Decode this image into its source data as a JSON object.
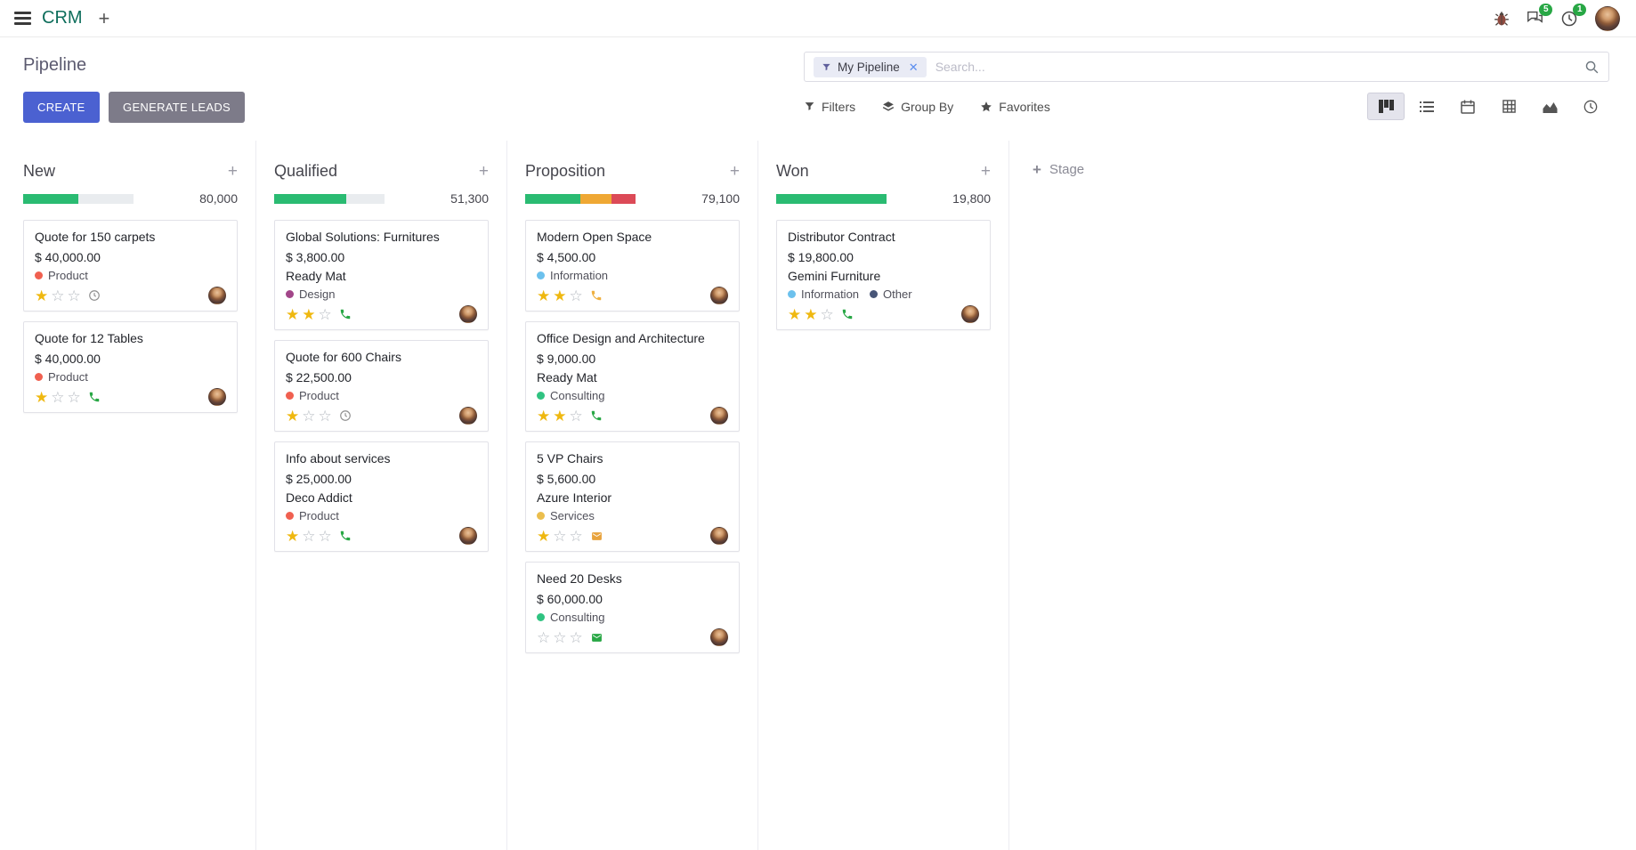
{
  "colors": {
    "primary_button": "#4b61d1",
    "secondary_button": "#7d7b89",
    "app_name": "#0e6e5c",
    "badge_green": "#28a745",
    "progress_green": "#2abb72",
    "progress_orange": "#efa834",
    "progress_red": "#dc4a57",
    "star_gold": "#efb810"
  },
  "navbar": {
    "app_name": "CRM",
    "messages_badge": "5",
    "activities_badge": "1"
  },
  "control_panel": {
    "title": "Pipeline",
    "create": "CREATE",
    "generate_leads": "GENERATE LEADS",
    "search_facet": "My Pipeline",
    "search_placeholder": "Search...",
    "filters": "Filters",
    "group_by": "Group By",
    "favorites": "Favorites"
  },
  "kanban": {
    "add_stage": "Stage",
    "columns": [
      {
        "name": "New",
        "total": "80,000",
        "progress": [
          {
            "color": "#2abb72",
            "pct": 50
          }
        ],
        "cards": [
          {
            "title": "Quote for 150 carpets",
            "amount": "$ 40,000.00",
            "partner": null,
            "tags": [
              {
                "label": "Product",
                "color": "#f06050"
              }
            ],
            "stars": 1,
            "activity": {
              "icon": "clock",
              "color": "#8f8f8f"
            }
          },
          {
            "title": "Quote for 12 Tables",
            "amount": "$ 40,000.00",
            "partner": null,
            "tags": [
              {
                "label": "Product",
                "color": "#f06050"
              }
            ],
            "stars": 1,
            "activity": {
              "icon": "phone",
              "color": "#28a745"
            }
          }
        ]
      },
      {
        "name": "Qualified",
        "total": "51,300",
        "progress": [
          {
            "color": "#2abb72",
            "pct": 65
          }
        ],
        "cards": [
          {
            "title": "Global Solutions: Furnitures",
            "amount": "$ 3,800.00",
            "partner": "Ready Mat",
            "tags": [
              {
                "label": "Design",
                "color": "#a24689"
              }
            ],
            "stars": 2,
            "activity": {
              "icon": "phone",
              "color": "#28a745"
            }
          },
          {
            "title": "Quote for 600 Chairs",
            "amount": "$ 22,500.00",
            "partner": null,
            "tags": [
              {
                "label": "Product",
                "color": "#f06050"
              }
            ],
            "stars": 1,
            "activity": {
              "icon": "clock",
              "color": "#8f8f8f"
            }
          },
          {
            "title": "Info about services",
            "amount": "$ 25,000.00",
            "partner": "Deco Addict",
            "tags": [
              {
                "label": "Product",
                "color": "#f06050"
              }
            ],
            "stars": 1,
            "activity": {
              "icon": "phone",
              "color": "#28a745"
            }
          }
        ]
      },
      {
        "name": "Proposition",
        "total": "79,100",
        "progress": [
          {
            "color": "#2abb72",
            "pct": 50
          },
          {
            "color": "#efa834",
            "pct": 28
          },
          {
            "color": "#dc4a57",
            "pct": 22
          }
        ],
        "cards": [
          {
            "title": "Modern Open Space",
            "amount": "$ 4,500.00",
            "partner": null,
            "tags": [
              {
                "label": "Information",
                "color": "#6cc1ed"
              }
            ],
            "stars": 2,
            "activity": {
              "icon": "phone",
              "color": "#efb041"
            }
          },
          {
            "title": "Office Design and Architecture",
            "amount": "$ 9,000.00",
            "partner": "Ready Mat",
            "tags": [
              {
                "label": "Consulting",
                "color": "#30c381"
              }
            ],
            "stars": 2,
            "activity": {
              "icon": "phone",
              "color": "#28a745"
            }
          },
          {
            "title": "5 VP Chairs",
            "amount": "$ 5,600.00",
            "partner": "Azure Interior",
            "tags": [
              {
                "label": "Services",
                "color": "#ebbe4d"
              }
            ],
            "stars": 1,
            "activity": {
              "icon": "mail",
              "color": "#e8a33d"
            }
          },
          {
            "title": "Need 20 Desks",
            "amount": "$ 60,000.00",
            "partner": null,
            "tags": [
              {
                "label": "Consulting",
                "color": "#30c381"
              }
            ],
            "stars": 0,
            "activity": {
              "icon": "mail",
              "color": "#28a745"
            }
          }
        ]
      },
      {
        "name": "Won",
        "total": "19,800",
        "progress": [
          {
            "color": "#2abb72",
            "pct": 100
          }
        ],
        "cards": [
          {
            "title": "Distributor Contract",
            "amount": "$ 19,800.00",
            "partner": "Gemini Furniture",
            "tags": [
              {
                "label": "Information",
                "color": "#6cc1ed"
              },
              {
                "label": "Other",
                "color": "#475577"
              }
            ],
            "stars": 2,
            "activity": {
              "icon": "phone",
              "color": "#28a745"
            }
          }
        ]
      }
    ]
  }
}
